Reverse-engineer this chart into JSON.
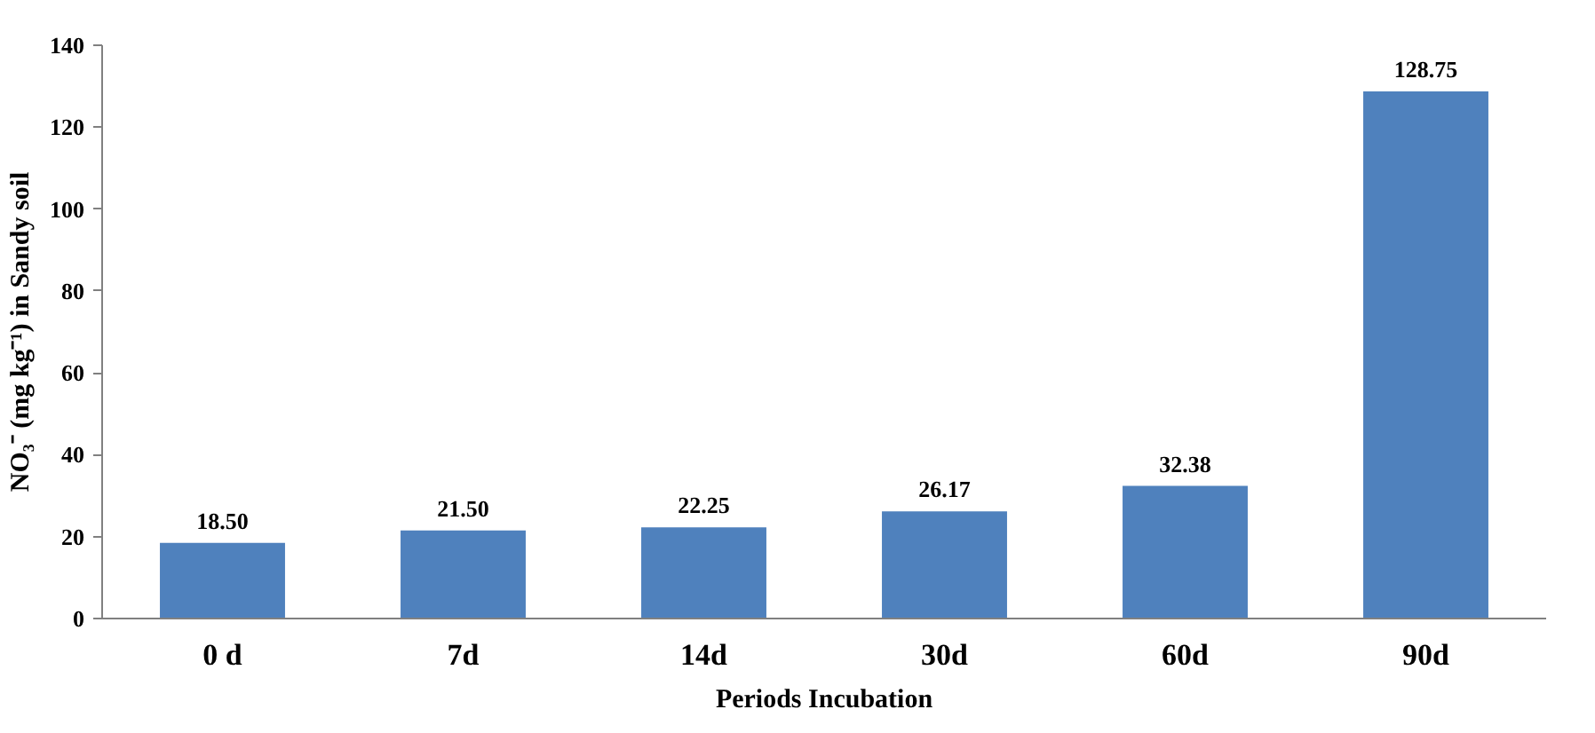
{
  "chart_data": {
    "type": "bar",
    "xlabel": "Periods Incubation",
    "ylabel": "NO₃⁻ (mg kg⁻¹) in Sandy soil",
    "categories": [
      "0 d",
      "7d",
      "14d",
      "30d",
      "60d",
      "90d"
    ],
    "values": [
      18.5,
      21.5,
      22.25,
      26.17,
      32.38,
      128.75
    ],
    "value_labels": [
      "18.50",
      "21.50",
      "22.25",
      "26.17",
      "32.38",
      "128.75"
    ],
    "color": "#4f81bd",
    "ylim": [
      0,
      140
    ],
    "yticks": [
      0,
      20,
      40,
      60,
      80,
      100,
      120,
      140
    ],
    "grid": false
  }
}
